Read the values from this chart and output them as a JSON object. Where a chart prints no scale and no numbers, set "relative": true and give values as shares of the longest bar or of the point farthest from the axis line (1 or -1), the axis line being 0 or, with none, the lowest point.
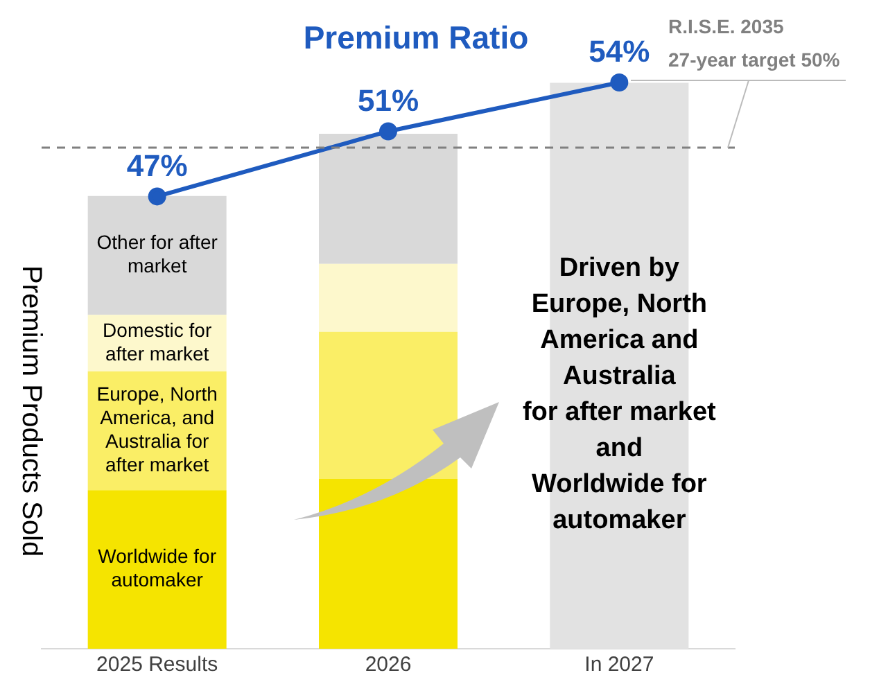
{
  "chart_data": [
    {
      "type": "bar",
      "stacked": true,
      "relative": true,
      "ylabel": "Premium Products Sold",
      "categories": [
        "2025 Results",
        "2026",
        "In 2027"
      ],
      "series": [
        {
          "name": "Worldwide for automaker",
          "color": "#f5e400",
          "values": [
            0.28,
            0.3,
            null
          ]
        },
        {
          "name": "Europe, North America, and Australia for after market",
          "color": "#faee66",
          "values": [
            0.21,
            0.26,
            null
          ]
        },
        {
          "name": "Domestic for after market",
          "color": "#fdf8cc",
          "values": [
            0.1,
            0.12,
            null
          ]
        },
        {
          "name": "Other for after market",
          "color": "#d9d9d9",
          "values": [
            0.21,
            0.23,
            null
          ]
        },
        {
          "color": "#e2e2e2",
          "values": [
            null,
            null,
            1
          ]
        }
      ],
      "tick_labels": "x",
      "legend": false,
      "annotations": [
        "Driven by\nEurope, North\nAmerica and\nAustralia\nfor after market\nand\nWorldwide for\nautomaker"
      ]
    },
    {
      "type": "line",
      "title": "Premium Ratio",
      "categories": [
        null,
        null,
        null
      ],
      "series": [
        {
          "color": "#1f5bbf",
          "values": [
            47,
            51,
            54
          ],
          "value_labels": [
            "47%",
            "51%",
            "54%"
          ]
        }
      ],
      "tick_labels": false,
      "marker": "circle",
      "legend": false,
      "ref_lines": [
        {
          "axis": "y",
          "value": 50,
          "label": "R.I.S.E. 2035\n27-year target 50%",
          "color": "#808080",
          "line_style": "dashed"
        }
      ]
    }
  ]
}
